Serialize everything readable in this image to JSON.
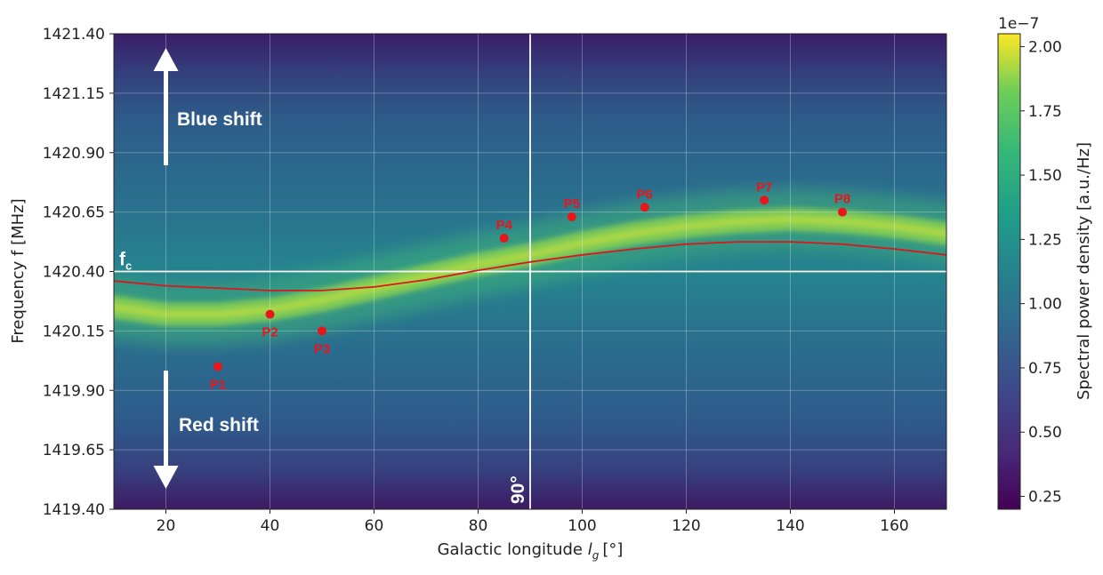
{
  "chart_data": {
    "type": "heatmap",
    "xlabel": "Galactic longitude",
    "xlabel_symbol": "l",
    "xlabel_sub": "g",
    "xlabel_unit": "[°]",
    "ylabel": "Frequency f [MHz]",
    "xlim": [
      10,
      170
    ],
    "ylim": [
      1419.4,
      1421.4
    ],
    "x_ticks": [
      20,
      40,
      60,
      80,
      100,
      120,
      140,
      160
    ],
    "y_ticks": [
      "1419.40",
      "1419.65",
      "1419.90",
      "1420.15",
      "1420.40",
      "1420.65",
      "1420.90",
      "1421.15",
      "1421.40"
    ],
    "grid": true,
    "colormap": "viridis",
    "colorbar": {
      "label": "Spectral power density [a.u./Hz]",
      "scale_label": "1e−7",
      "range": [
        0.2,
        2.05
      ],
      "ticks": [
        "0.25",
        "0.50",
        "0.75",
        "1.00",
        "1.25",
        "1.50",
        "1.75",
        "2.00"
      ]
    },
    "center_frequency": {
      "label": "f",
      "label_sub": "c",
      "value": 1420.4
    },
    "vertical_marker": {
      "label": "90°",
      "value": 90
    },
    "points": [
      {
        "name": "P1",
        "x": 30,
        "y": 1420.0
      },
      {
        "name": "P2",
        "x": 40,
        "y": 1420.22
      },
      {
        "name": "P3",
        "x": 50,
        "y": 1420.15
      },
      {
        "name": "P4",
        "x": 85,
        "y": 1420.54
      },
      {
        "name": "P5",
        "x": 98,
        "y": 1420.63
      },
      {
        "name": "P6",
        "x": 112,
        "y": 1420.67
      },
      {
        "name": "P7",
        "x": 135,
        "y": 1420.7
      },
      {
        "name": "P8",
        "x": 150,
        "y": 1420.65
      }
    ],
    "fit_curve": {
      "x": [
        10,
        20,
        30,
        40,
        50,
        60,
        70,
        80,
        90,
        100,
        110,
        120,
        130,
        140,
        150,
        160,
        170
      ],
      "y": [
        1420.36,
        1420.34,
        1420.33,
        1420.32,
        1420.32,
        1420.335,
        1420.365,
        1420.405,
        1420.44,
        1420.47,
        1420.495,
        1420.515,
        1420.525,
        1420.525,
        1420.515,
        1420.495,
        1420.47
      ]
    },
    "emission_ridge": {
      "x": [
        10,
        20,
        30,
        40,
        50,
        60,
        70,
        80,
        90,
        100,
        110,
        120,
        130,
        140,
        150,
        160,
        170
      ],
      "y": [
        1420.25,
        1420.22,
        1420.22,
        1420.24,
        1420.28,
        1420.33,
        1420.38,
        1420.43,
        1420.47,
        1420.52,
        1420.56,
        1420.59,
        1420.61,
        1420.62,
        1420.61,
        1420.59,
        1420.56
      ]
    },
    "annotations": {
      "blue_shift": "Blue shift",
      "red_shift": "Red shift"
    }
  }
}
